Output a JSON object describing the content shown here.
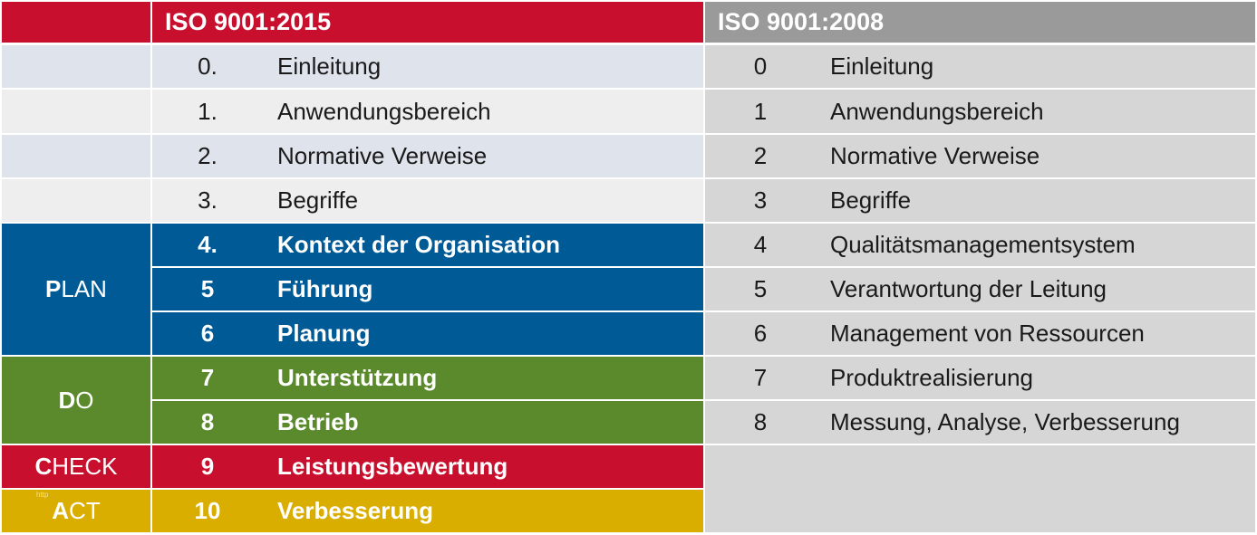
{
  "header": {
    "new_title": "ISO 9001:2015",
    "old_title": "ISO 9001:2008"
  },
  "colors": {
    "red": "#c8102e",
    "blue": "#005a96",
    "green": "#5a8a2c",
    "gold": "#d9ae00",
    "grey_header": "#9a9a9a",
    "light_blue": "#dfe3ec",
    "light_grey": "#eeeeee",
    "grey_cell": "#d6d6d6"
  },
  "phases": [
    {
      "bold": "P",
      "rest": "LAN"
    },
    {
      "bold": "D",
      "rest": "O"
    },
    {
      "bold": "C",
      "rest": "HECK"
    },
    {
      "bold": "A",
      "rest": "CT"
    }
  ],
  "watermark": "http",
  "new_rows": [
    {
      "num": "0.",
      "label": "Einleitung"
    },
    {
      "num": "1.",
      "label": "Anwendungsbereich"
    },
    {
      "num": "2.",
      "label": "Normative Verweise"
    },
    {
      "num": "3.",
      "label": "Begriffe"
    },
    {
      "num": "4.",
      "label": "Kontext der Organisation"
    },
    {
      "num": "5",
      "label": "Führung"
    },
    {
      "num": "6",
      "label": "Planung"
    },
    {
      "num": "7",
      "label": "Unterstützung"
    },
    {
      "num": "8",
      "label": "Betrieb"
    },
    {
      "num": "9",
      "label": "Leistungsbewertung"
    },
    {
      "num": "10",
      "label": "Verbesserung"
    }
  ],
  "old_rows": [
    {
      "num": "0",
      "label": "Einleitung"
    },
    {
      "num": "1",
      "label": "Anwendungsbereich"
    },
    {
      "num": "2",
      "label": "Normative Verweise"
    },
    {
      "num": "3",
      "label": "Begriffe"
    },
    {
      "num": "4",
      "label": "Qualitätsmanagementsystem"
    },
    {
      "num": "5",
      "label": "Verantwortung der Leitung"
    },
    {
      "num": "6",
      "label": "Management von Ressourcen"
    },
    {
      "num": "7",
      "label": "Produktrealisierung"
    },
    {
      "num": "8",
      "label": "Messung, Analyse, Verbesserung"
    }
  ]
}
